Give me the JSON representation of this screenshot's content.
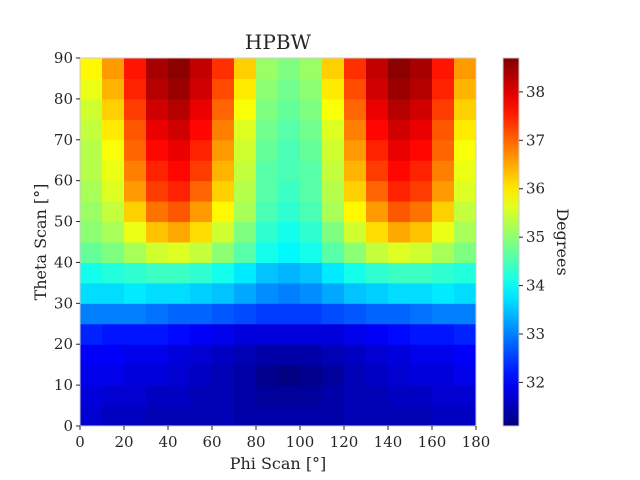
{
  "chart_data": {
    "type": "heatmap",
    "title": "HPBW",
    "xlabel": "Phi Scan [°]",
    "ylabel": "Theta Scan [°]",
    "colorbar_label": "Degrees",
    "colormap": "jet",
    "xlim": [
      0,
      180
    ],
    "ylim": [
      0,
      90
    ],
    "clim": [
      31.1,
      38.7
    ],
    "x_ticks": [
      0,
      20,
      40,
      60,
      80,
      100,
      120,
      140,
      160,
      180
    ],
    "y_ticks": [
      0,
      10,
      20,
      30,
      40,
      50,
      60,
      70,
      80,
      90
    ],
    "colorbar_ticks": [
      32,
      33,
      34,
      35,
      36,
      37,
      38
    ],
    "x_step": 10,
    "y_step": 5,
    "rows_theta_ascending": [
      [
        31.7,
        31.6,
        31.6,
        31.5,
        31.5,
        31.5,
        31.5,
        31.4,
        31.4,
        31.4,
        31.4,
        31.4,
        31.5,
        31.5,
        31.5,
        31.5,
        31.6,
        31.6
      ],
      [
        31.8,
        31.7,
        31.7,
        31.6,
        31.6,
        31.5,
        31.5,
        31.4,
        31.3,
        31.3,
        31.3,
        31.4,
        31.5,
        31.5,
        31.6,
        31.6,
        31.7,
        31.7
      ],
      [
        31.9,
        31.9,
        31.8,
        31.8,
        31.7,
        31.6,
        31.5,
        31.4,
        31.2,
        31.1,
        31.2,
        31.3,
        31.5,
        31.6,
        31.7,
        31.8,
        31.8,
        31.9
      ],
      [
        32.0,
        32.0,
        31.9,
        31.9,
        31.8,
        31.7,
        31.6,
        31.5,
        31.4,
        31.4,
        31.4,
        31.5,
        31.6,
        31.7,
        31.8,
        31.9,
        31.9,
        32.0
      ],
      [
        32.3,
        32.2,
        32.2,
        32.2,
        32.1,
        32.0,
        31.9,
        31.8,
        31.8,
        31.8,
        31.8,
        31.8,
        31.9,
        32.0,
        32.1,
        32.2,
        32.2,
        32.3
      ],
      [
        33.0,
        33.0,
        33.0,
        32.9,
        32.8,
        32.8,
        32.7,
        32.6,
        32.5,
        32.5,
        32.5,
        32.6,
        32.7,
        32.8,
        32.8,
        32.9,
        33.0,
        33.0
      ],
      [
        33.7,
        33.7,
        33.8,
        33.7,
        33.7,
        33.6,
        33.5,
        33.3,
        33.1,
        33.0,
        33.1,
        33.3,
        33.5,
        33.6,
        33.7,
        33.7,
        33.8,
        33.7
      ],
      [
        34.1,
        34.2,
        34.3,
        34.4,
        34.4,
        34.3,
        34.1,
        33.8,
        33.5,
        33.4,
        33.5,
        33.8,
        34.1,
        34.3,
        34.4,
        34.4,
        34.3,
        34.2
      ],
      [
        34.7,
        34.9,
        35.2,
        35.5,
        35.6,
        35.4,
        35.0,
        34.6,
        34.1,
        33.9,
        34.1,
        34.6,
        35.0,
        35.4,
        35.6,
        35.5,
        35.2,
        34.9
      ],
      [
        35.0,
        35.2,
        35.7,
        36.3,
        36.5,
        36.1,
        35.5,
        34.9,
        34.3,
        34.1,
        34.3,
        34.9,
        35.5,
        36.1,
        36.5,
        36.3,
        35.7,
        35.2
      ],
      [
        35.1,
        35.4,
        36.2,
        36.9,
        37.1,
        36.6,
        35.9,
        35.2,
        34.5,
        34.3,
        34.5,
        35.2,
        35.9,
        36.6,
        37.1,
        36.9,
        36.2,
        35.4
      ],
      [
        35.2,
        35.6,
        36.6,
        37.3,
        37.5,
        37.0,
        36.2,
        35.3,
        34.6,
        34.4,
        34.6,
        35.3,
        36.2,
        37.0,
        37.5,
        37.3,
        36.6,
        35.6
      ],
      [
        35.3,
        35.7,
        36.8,
        37.5,
        37.7,
        37.3,
        36.4,
        35.4,
        34.6,
        34.5,
        34.6,
        35.4,
        36.4,
        37.3,
        37.7,
        37.5,
        36.8,
        35.7
      ],
      [
        35.3,
        35.8,
        37.0,
        37.7,
        37.9,
        37.5,
        36.6,
        35.5,
        34.7,
        34.5,
        34.7,
        35.5,
        36.6,
        37.5,
        37.9,
        37.7,
        37.0,
        35.8
      ],
      [
        35.4,
        36.0,
        37.1,
        37.9,
        38.1,
        37.7,
        36.8,
        35.6,
        34.8,
        34.6,
        34.8,
        35.6,
        36.8,
        37.7,
        38.1,
        37.9,
        37.1,
        36.0
      ],
      [
        35.5,
        36.2,
        37.3,
        38.1,
        38.3,
        37.9,
        37.0,
        35.8,
        34.9,
        34.7,
        34.9,
        35.8,
        37.0,
        37.9,
        38.3,
        38.1,
        37.3,
        36.2
      ],
      [
        35.7,
        36.4,
        37.5,
        38.3,
        38.5,
        38.1,
        37.2,
        36.0,
        35.0,
        34.8,
        35.0,
        36.0,
        37.2,
        38.1,
        38.5,
        38.3,
        37.5,
        36.4
      ],
      [
        35.9,
        36.6,
        37.6,
        38.4,
        38.6,
        38.2,
        37.4,
        36.2,
        35.1,
        34.9,
        35.1,
        36.2,
        37.4,
        38.2,
        38.6,
        38.4,
        37.6,
        36.6
      ]
    ]
  }
}
